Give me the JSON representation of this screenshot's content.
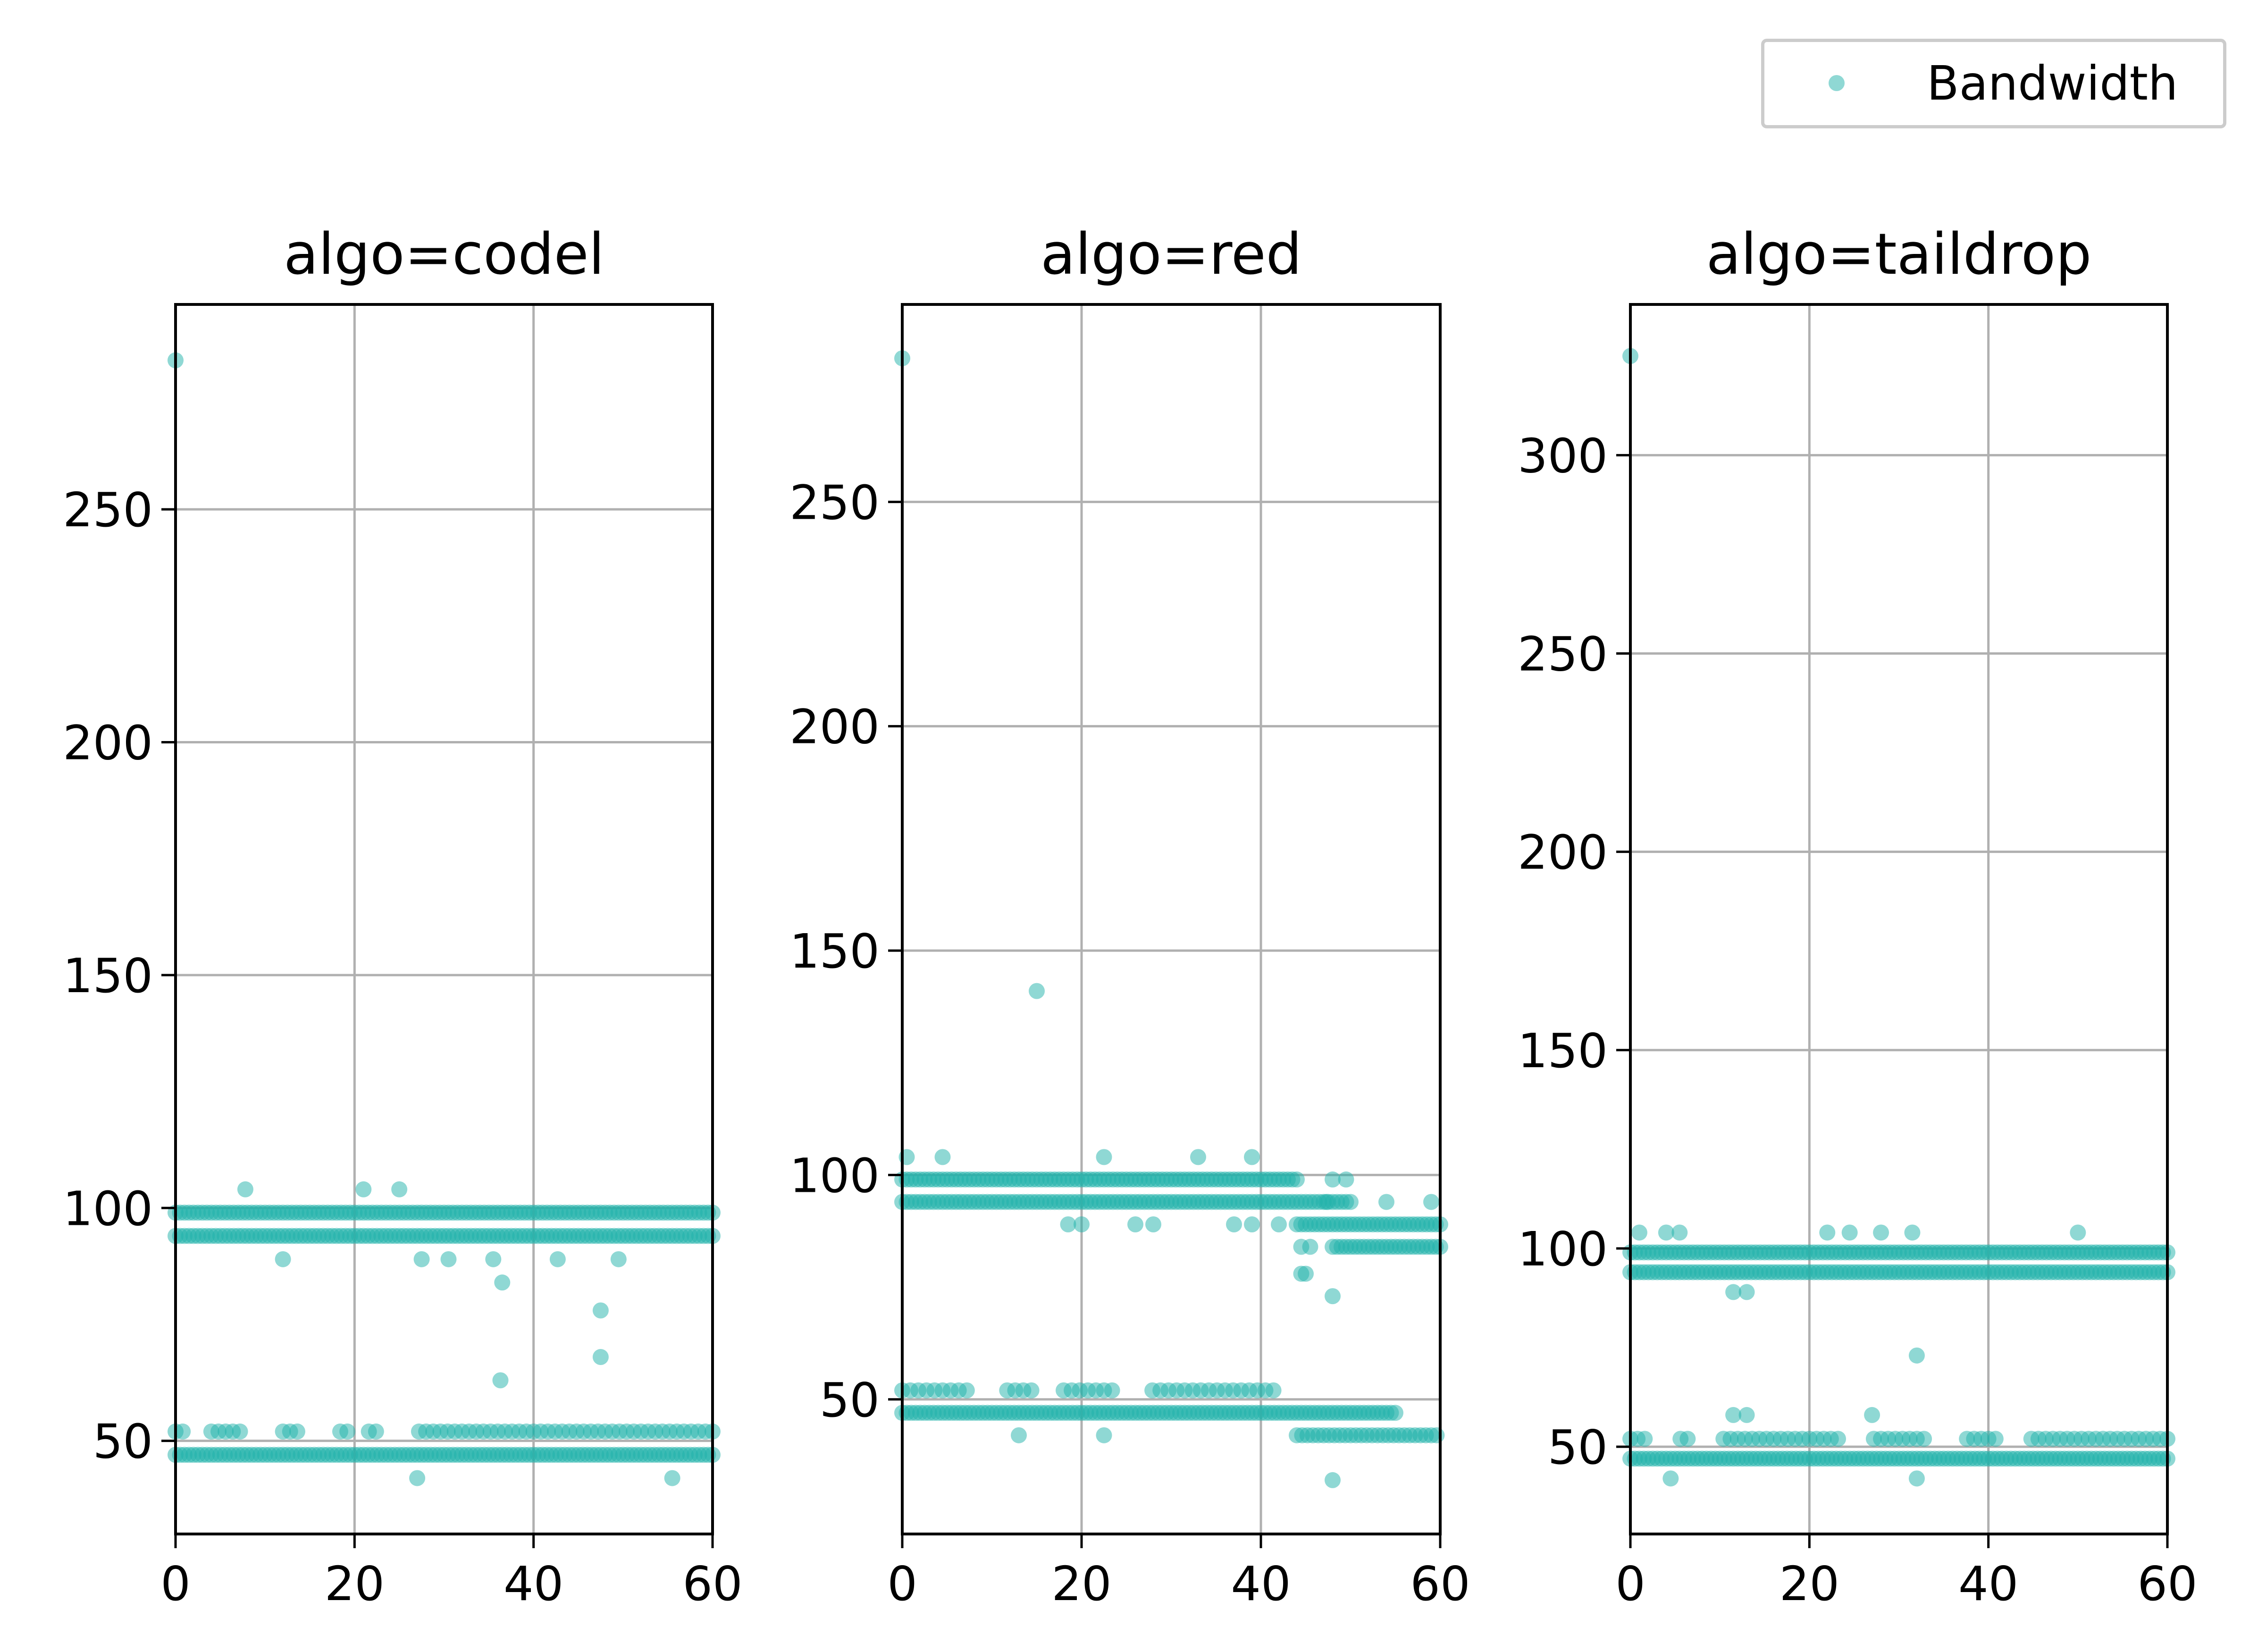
{
  "legend": {
    "label": "Bandwidth"
  },
  "colors": {
    "series": "#20b2aa",
    "grid": "#b0b0b0",
    "axis": "#000000",
    "text": "#000000"
  },
  "chart_data": [
    {
      "type": "scatter",
      "title": "algo=codel",
      "series_name": "Bandwidth",
      "xlim": [
        0,
        60
      ],
      "ylim": [
        30,
        294
      ],
      "xticks": [
        0,
        20,
        40,
        60
      ],
      "yticks": [
        50,
        100,
        150,
        200,
        250
      ],
      "grid": true,
      "bands": [
        {
          "y": 99,
          "x_from": 0,
          "x_to": 60,
          "step": 0.5
        },
        {
          "y": 94,
          "x_from": 0,
          "x_to": 60,
          "step": 0.5
        },
        {
          "y": 52,
          "x_from": 0,
          "x_to": 60,
          "step": 0.8,
          "gaps": [
            [
              1,
              3.5
            ],
            [
              8,
              11.5
            ],
            [
              14,
              18
            ],
            [
              19.5,
              21.5
            ],
            [
              23,
              27
            ]
          ]
        },
        {
          "y": 47,
          "x_from": 0,
          "x_to": 60,
          "step": 0.5
        }
      ],
      "points": [
        [
          0,
          282
        ],
        [
          7.8,
          104
        ],
        [
          21,
          104
        ],
        [
          25,
          104
        ],
        [
          12,
          89
        ],
        [
          27.5,
          89
        ],
        [
          30.5,
          89
        ],
        [
          42.7,
          89
        ],
        [
          49.5,
          89
        ],
        [
          35.5,
          89
        ],
        [
          36.5,
          84
        ],
        [
          36.3,
          63
        ],
        [
          47.5,
          78
        ],
        [
          47.5,
          68
        ],
        [
          27,
          42
        ],
        [
          55.5,
          42
        ]
      ]
    },
    {
      "type": "scatter",
      "title": "algo=red",
      "series_name": "Bandwidth",
      "xlim": [
        0,
        60
      ],
      "ylim": [
        20,
        294
      ],
      "xticks": [
        0,
        20,
        40,
        60
      ],
      "yticks": [
        50,
        100,
        150,
        200,
        250
      ],
      "grid": true,
      "bands": [
        {
          "y": 99,
          "x_from": 0,
          "x_to": 44,
          "step": 0.5
        },
        {
          "y": 94,
          "x_from": 0,
          "x_to": 50,
          "step": 0.5
        },
        {
          "y": 89,
          "x_from": 44,
          "x_to": 60,
          "step": 0.5
        },
        {
          "y": 84,
          "x_from": 48,
          "x_to": 60,
          "step": 0.5
        },
        {
          "y": 52,
          "x_from": 0,
          "x_to": 42,
          "step": 0.9,
          "gaps": [
            [
              8,
              11
            ],
            [
              14.5,
              17.5
            ],
            [
              24,
              27
            ]
          ]
        },
        {
          "y": 47,
          "x_from": 0,
          "x_to": 55,
          "step": 0.5
        },
        {
          "y": 42,
          "x_from": 44,
          "x_to": 60,
          "step": 0.6
        }
      ],
      "points": [
        [
          0,
          282
        ],
        [
          15,
          141
        ],
        [
          0.5,
          104
        ],
        [
          4.5,
          104
        ],
        [
          22.5,
          104
        ],
        [
          33,
          104
        ],
        [
          39,
          104
        ],
        [
          48,
          99
        ],
        [
          49.5,
          99
        ],
        [
          54,
          94
        ],
        [
          59,
          94
        ],
        [
          47.3,
          94
        ],
        [
          18.5,
          89
        ],
        [
          20,
          89
        ],
        [
          26,
          89
        ],
        [
          28,
          89
        ],
        [
          37,
          89
        ],
        [
          39,
          89
        ],
        [
          42,
          89
        ],
        [
          44.5,
          84
        ],
        [
          45.5,
          84
        ],
        [
          44.5,
          78
        ],
        [
          45,
          78
        ],
        [
          48,
          73
        ],
        [
          13,
          42
        ],
        [
          22.5,
          42
        ],
        [
          48,
          32
        ]
      ]
    },
    {
      "type": "scatter",
      "title": "algo=taildrop",
      "series_name": "Bandwidth",
      "xlim": [
        0,
        60
      ],
      "ylim": [
        28,
        338
      ],
      "xticks": [
        0,
        20,
        40,
        60
      ],
      "yticks": [
        50,
        100,
        150,
        200,
        250,
        300
      ],
      "grid": true,
      "bands": [
        {
          "y": 99,
          "x_from": 0,
          "x_to": 60,
          "step": 0.5
        },
        {
          "y": 94,
          "x_from": 0,
          "x_to": 60,
          "step": 0.5
        },
        {
          "y": 52,
          "x_from": 0,
          "x_to": 60,
          "step": 0.8,
          "gaps": [
            [
              2,
              5.5
            ],
            [
              7,
              10
            ],
            [
              24,
              27
            ],
            [
              33,
              37
            ],
            [
              41,
              44
            ]
          ]
        },
        {
          "y": 47,
          "x_from": 0,
          "x_to": 60,
          "step": 0.5
        }
      ],
      "points": [
        [
          0,
          325
        ],
        [
          1,
          104
        ],
        [
          4,
          104
        ],
        [
          5.5,
          104
        ],
        [
          22,
          104
        ],
        [
          24.5,
          104
        ],
        [
          28,
          104
        ],
        [
          31.5,
          104
        ],
        [
          50,
          104
        ],
        [
          11.5,
          89
        ],
        [
          13,
          89
        ],
        [
          11.5,
          58
        ],
        [
          13,
          58
        ],
        [
          27,
          58
        ],
        [
          32,
          73
        ],
        [
          4.5,
          42
        ],
        [
          32,
          42
        ]
      ]
    }
  ]
}
